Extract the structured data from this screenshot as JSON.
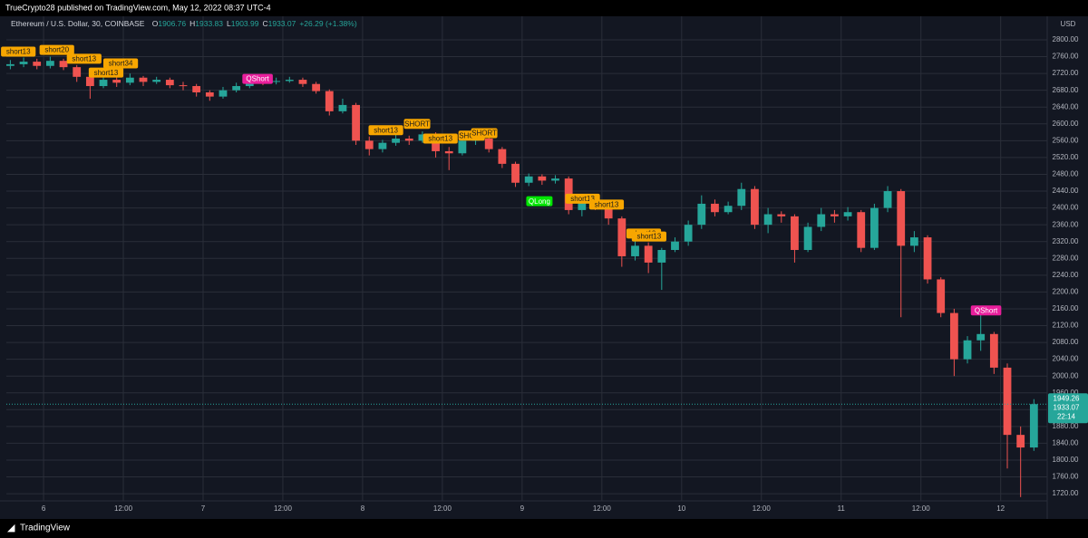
{
  "chart_data": {
    "type": "candlestick",
    "published": "TrueCrypto28 published on TradingView.com, May 12, 2022 08:37 UTC-4",
    "symbol": "Ethereum / U.S. Dollar, 30, COINBASE",
    "ohlc_legend": [
      {
        "key": "O",
        "value": 1906.76
      },
      {
        "key": "H",
        "value": 1933.83
      },
      {
        "key": "L",
        "value": 1903.99
      },
      {
        "key": "C",
        "value": 1933.07
      }
    ],
    "change": "+26.29 (+1.38%)",
    "currency": "USD",
    "price_tags": [
      1949.26,
      1933.07
    ],
    "countdown": "22:14",
    "brand": "TradingView",
    "up_color": "#26a69a",
    "down_color": "#ef5350",
    "grid": true,
    "x": [
      -5,
      -3,
      -1,
      1,
      3,
      5,
      7,
      9,
      11,
      13,
      15,
      17,
      19,
      21,
      23,
      25,
      27,
      29,
      31,
      33,
      35,
      37,
      39,
      41,
      43,
      45,
      47,
      49,
      51,
      53,
      55,
      57,
      59,
      61,
      63,
      65,
      67,
      69,
      71,
      73,
      75,
      77,
      79,
      81,
      83,
      85,
      87,
      89,
      91,
      93,
      95,
      97,
      99,
      101,
      103,
      105,
      107,
      109,
      111,
      113,
      115,
      117,
      119,
      121,
      123,
      125,
      127,
      129,
      131,
      133,
      135,
      137,
      139,
      141,
      143,
      145,
      147,
      149
    ],
    "open": [
      2738,
      2742,
      2748,
      2738,
      2750,
      2735,
      2712,
      2690,
      2705,
      2698,
      2710,
      2700,
      2705,
      2692,
      2690,
      2675,
      2665,
      2680,
      2690,
      2705,
      2700,
      2702,
      2705,
      2695,
      2678,
      2630,
      2645,
      2560,
      2540,
      2555,
      2565,
      2560,
      2575,
      2535,
      2530,
      2560,
      2565,
      2540,
      2505,
      2460,
      2475,
      2465,
      2470,
      2395,
      2415,
      2405,
      2375,
      2285,
      2310,
      2270,
      2300,
      2320,
      2360,
      2410,
      2390,
      2405,
      2445,
      2360,
      2385,
      2380,
      2300,
      2355,
      2385,
      2380,
      2390,
      2305,
      2400,
      2440,
      2310,
      2330,
      2230,
      2150,
      2040,
      2085,
      2100,
      2020,
      1860,
      1830
    ],
    "high": [
      2752,
      2758,
      2755,
      2760,
      2755,
      2740,
      2718,
      2715,
      2712,
      2720,
      2714,
      2712,
      2710,
      2700,
      2695,
      2680,
      2688,
      2698,
      2712,
      2710,
      2710,
      2712,
      2710,
      2700,
      2682,
      2660,
      2650,
      2570,
      2562,
      2575,
      2572,
      2582,
      2580,
      2545,
      2572,
      2580,
      2570,
      2545,
      2510,
      2482,
      2480,
      2478,
      2475,
      2425,
      2420,
      2410,
      2380,
      2325,
      2318,
      2305,
      2330,
      2370,
      2430,
      2420,
      2415,
      2460,
      2452,
      2400,
      2392,
      2385,
      2365,
      2400,
      2395,
      2402,
      2395,
      2410,
      2452,
      2445,
      2345,
      2335,
      2235,
      2160,
      2095,
      2150,
      2105,
      2030,
      1880,
      1945
    ],
    "low": [
      2730,
      2735,
      2730,
      2732,
      2728,
      2700,
      2660,
      2685,
      2688,
      2692,
      2690,
      2695,
      2685,
      2680,
      2665,
      2655,
      2660,
      2675,
      2685,
      2692,
      2694,
      2698,
      2688,
      2672,
      2620,
      2625,
      2550,
      2525,
      2532,
      2548,
      2550,
      2555,
      2520,
      2490,
      2525,
      2550,
      2532,
      2495,
      2450,
      2452,
      2455,
      2458,
      2385,
      2380,
      2395,
      2360,
      2260,
      2275,
      2245,
      2205,
      2295,
      2310,
      2350,
      2380,
      2385,
      2395,
      2350,
      2340,
      2365,
      2270,
      2295,
      2345,
      2365,
      2370,
      2295,
      2300,
      2390,
      2140,
      2295,
      2220,
      2140,
      2000,
      2030,
      2060,
      2005,
      1780,
      1712,
      1822
    ],
    "close": [
      2742,
      2748,
      2738,
      2750,
      2735,
      2712,
      2690,
      2705,
      2698,
      2710,
      2700,
      2705,
      2692,
      2690,
      2675,
      2665,
      2680,
      2690,
      2705,
      2700,
      2702,
      2705,
      2695,
      2678,
      2630,
      2645,
      2560,
      2540,
      2555,
      2565,
      2560,
      2575,
      2535,
      2530,
      2560,
      2565,
      2540,
      2505,
      2460,
      2475,
      2465,
      2470,
      2395,
      2415,
      2405,
      2375,
      2285,
      2310,
      2270,
      2300,
      2320,
      2360,
      2410,
      2390,
      2405,
      2445,
      2360,
      2385,
      2380,
      2300,
      2355,
      2385,
      2380,
      2390,
      2305,
      2400,
      2440,
      2310,
      2330,
      2230,
      2150,
      2040,
      2085,
      2100,
      2020,
      1860,
      1830,
      1933.07
    ],
    "xlim": [
      -5.6,
      151
    ],
    "ylim": [
      1703,
      2856
    ],
    "xticks": [
      {
        "value": 0,
        "label": "6"
      },
      {
        "value": 12,
        "label": "12:00"
      },
      {
        "value": 24,
        "label": "7"
      },
      {
        "value": 36,
        "label": "12:00"
      },
      {
        "value": 48,
        "label": "8"
      },
      {
        "value": 60,
        "label": "12:00"
      },
      {
        "value": 72,
        "label": "9"
      },
      {
        "value": 84,
        "label": "12:00"
      },
      {
        "value": 96,
        "label": "10"
      },
      {
        "value": 108,
        "label": "12:00"
      },
      {
        "value": 120,
        "label": "11"
      },
      {
        "value": 132,
        "label": "12:00"
      },
      {
        "value": 144,
        "label": "12"
      }
    ],
    "yticks": [
      {
        "value": 1720,
        "label": "1720.00"
      },
      {
        "value": 1760,
        "label": "1760.00"
      },
      {
        "value": 1800,
        "label": "1800.00"
      },
      {
        "value": 1840,
        "label": "1840.00"
      },
      {
        "value": 1880,
        "label": "1880.00"
      },
      {
        "value": 1920,
        "label": "1920.00"
      },
      {
        "value": 1960,
        "label": "1960.00"
      },
      {
        "value": 2000,
        "label": "2000.00"
      },
      {
        "value": 2040,
        "label": "2040.00"
      },
      {
        "value": 2080,
        "label": "2080.00"
      },
      {
        "value": 2120,
        "label": "2120.00"
      },
      {
        "value": 2160,
        "label": "2160.00"
      },
      {
        "value": 2200,
        "label": "2200.00"
      },
      {
        "value": 2240,
        "label": "2240.00"
      },
      {
        "value": 2280,
        "label": "2280.00"
      },
      {
        "value": 2320,
        "label": "2320.00"
      },
      {
        "value": 2360,
        "label": "2360.00"
      },
      {
        "value": 2400,
        "label": "2400.00"
      },
      {
        "value": 2440,
        "label": "2440.00"
      },
      {
        "value": 2480,
        "label": "2480.00"
      },
      {
        "value": 2520,
        "label": "2520.00"
      },
      {
        "value": 2560,
        "label": "2560.00"
      },
      {
        "value": 2600,
        "label": "2600.00"
      },
      {
        "value": 2640,
        "label": "2640.00"
      },
      {
        "value": 2680,
        "label": "2680.00"
      },
      {
        "value": 2720,
        "label": "2720.00"
      },
      {
        "value": 2760,
        "label": "2760.00"
      },
      {
        "value": 2800,
        "label": "2800.00"
      }
    ],
    "annotations": [
      {
        "text": "short13",
        "x": -3.8,
        "y": 2772,
        "color": "#f7a600"
      },
      {
        "text": "short20",
        "x": 2,
        "y": 2776,
        "color": "#f7a600"
      },
      {
        "text": "short13",
        "x": 6.1,
        "y": 2755,
        "color": "#f7a600"
      },
      {
        "text": "short34",
        "x": 11.6,
        "y": 2744,
        "color": "#f7a600"
      },
      {
        "text": "short13",
        "x": 9.4,
        "y": 2722,
        "color": "#f7a600"
      },
      {
        "text": "QShort",
        "x": 32.2,
        "y": 2707,
        "color": "#e91e9c"
      },
      {
        "text": "short13",
        "x": 51.5,
        "y": 2585,
        "color": "#f7a600"
      },
      {
        "text": "SHORT",
        "x": 56.2,
        "y": 2600,
        "color": "#f7a600"
      },
      {
        "text": "short13",
        "x": 59.7,
        "y": 2565,
        "color": "#f7a600"
      },
      {
        "text": "SHORT",
        "x": 64.4,
        "y": 2572,
        "color": "#f7a600"
      },
      {
        "text": "SHORT",
        "x": 66.3,
        "y": 2578,
        "color": "#f7a600"
      },
      {
        "text": "QLong",
        "x": 74.6,
        "y": 2416,
        "color": "#00e600"
      },
      {
        "text": "short13",
        "x": 81.1,
        "y": 2422,
        "color": "#f7a600"
      },
      {
        "text": "short13",
        "x": 84.7,
        "y": 2408,
        "color": "#f7a600"
      },
      {
        "text": "short13",
        "x": 90.3,
        "y": 2339,
        "color": "#f7a600"
      },
      {
        "text": "short13",
        "x": 91.1,
        "y": 2332,
        "color": "#f7a600"
      },
      {
        "text": "QShort",
        "x": 141.8,
        "y": 2156,
        "color": "#e91e9c"
      }
    ]
  }
}
